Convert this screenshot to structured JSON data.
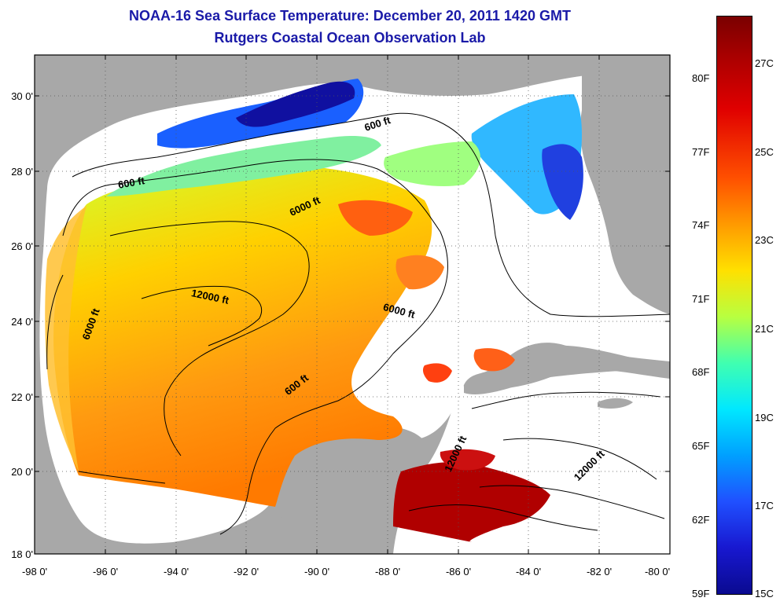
{
  "title": {
    "line1": "NOAA-16 Sea Surface Temperature:  December 20, 2011 1420 GMT",
    "line2": "Rutgers Coastal Ocean Observation Lab"
  },
  "colors": {
    "land": "#a8a8a8",
    "no_data": "#ffffff",
    "title": "#1a1aa8",
    "contour": "#000000"
  },
  "map": {
    "lat_labels": [
      "30 0'",
      "28 0'",
      "26 0'",
      "24 0'",
      "22 0'",
      "20 0'",
      "18 0'"
    ],
    "lon_labels": [
      "-98 0'",
      "-96 0'",
      "-94 0'",
      "-92 0'",
      "-90 0'",
      "-88 0'",
      "-86 0'",
      "-84 0'",
      "-82 0'",
      "-80 0'"
    ],
    "lat_range": [
      18,
      31.3
    ],
    "lon_range": [
      -98,
      -80
    ],
    "gridlines": "dotted",
    "depth_labels": [
      "600 ft",
      "600 ft",
      "6000 ft",
      "12000 ft",
      "6000 ft",
      "6000 ft",
      "600 ft",
      "12000 ft",
      "12000 ft"
    ]
  },
  "colorbar": {
    "fahrenheit": [
      "80F",
      "77F",
      "74F",
      "71F",
      "68F",
      "65F",
      "62F",
      "59F"
    ],
    "celsius": [
      "27C",
      "25C",
      "23C",
      "21C",
      "19C",
      "17C",
      "15C"
    ],
    "range_c": [
      15,
      28.2
    ]
  }
}
